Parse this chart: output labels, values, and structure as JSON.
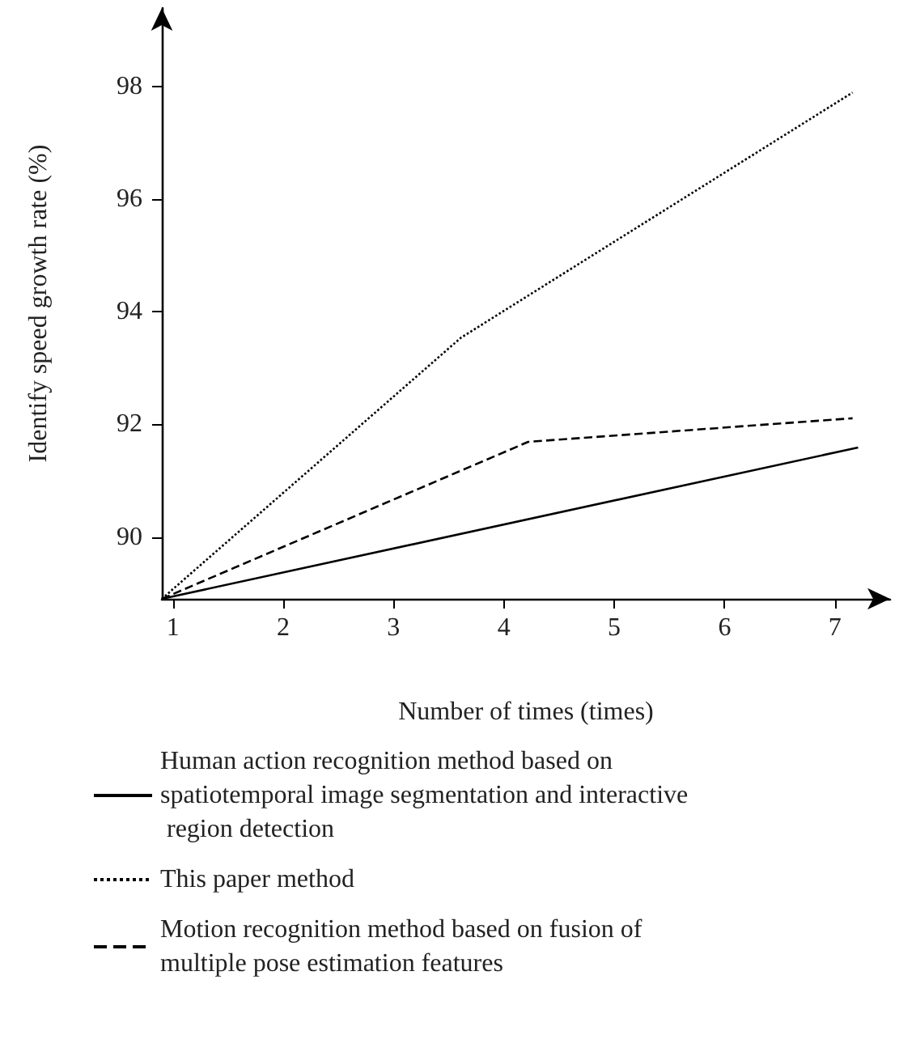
{
  "chart_data": {
    "type": "line",
    "xlabel": "Number of times (times)",
    "ylabel": "Identify speed growth rate (%)",
    "xlim": [
      0.9,
      7.5
    ],
    "xticks": [
      1,
      2,
      3,
      4,
      5,
      6,
      7
    ],
    "ylim": [
      88.9,
      99.4
    ],
    "yticks": [
      90,
      92,
      94,
      96,
      98
    ],
    "grid": false,
    "legend": "bottom",
    "marker": "none",
    "series": [
      {
        "name": "Human action recognition method based on spatiotemporal image segmentation and interactive region detection",
        "color": "#000000",
        "line_style": "solid",
        "x": [
          0.9,
          7.21
        ],
        "values": [
          88.9,
          91.59
        ]
      },
      {
        "name": "This paper method",
        "color": "#000000",
        "line_style": "dotted",
        "x": [
          0.9,
          3.61,
          7.16
        ],
        "values": [
          88.9,
          93.54,
          97.9
        ]
      },
      {
        "name": "Motion recognition method based on fusion of multiple pose estimation features",
        "color": "#000000",
        "line_style": "dashed",
        "x": [
          0.9,
          4.22,
          7.16
        ],
        "values": [
          88.9,
          91.69,
          92.11
        ]
      }
    ]
  }
}
